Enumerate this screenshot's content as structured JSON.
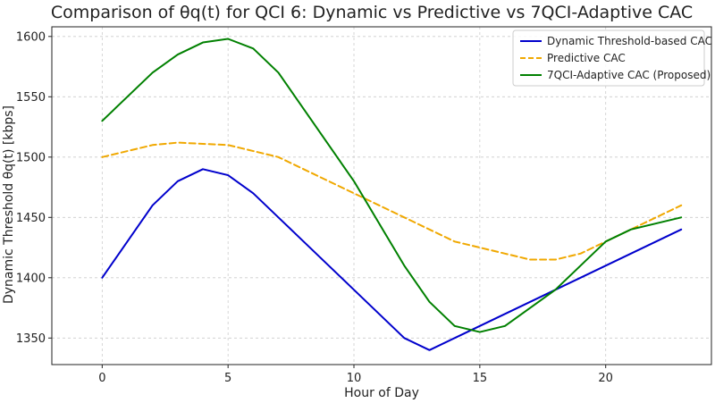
{
  "chart_data": {
    "type": "line",
    "title": "Comparison of θq(t) for QCI 6: Dynamic vs Predictive vs 7QCI-Adaptive CAC",
    "xlabel": "Hour of Day",
    "ylabel": "Dynamic Threshold θq(t) [kbps]",
    "xlim": [
      -2,
      24.2
    ],
    "ylim": [
      1328,
      1608
    ],
    "xticks": [
      0,
      5,
      10,
      15,
      20
    ],
    "yticks": [
      1350,
      1400,
      1450,
      1500,
      1550,
      1600
    ],
    "grid": true,
    "legend_position": "top-right",
    "series": [
      {
        "name": "Dynamic Threshold-based CAC",
        "color": "#0000cc",
        "dash": "solid",
        "x": [
          0,
          2,
          3,
          4,
          5,
          6,
          7,
          8,
          9,
          10,
          11,
          12,
          13,
          14,
          15,
          16,
          17,
          18,
          19,
          20,
          21,
          22,
          23
        ],
        "y": [
          1400,
          1460,
          1480,
          1490,
          1485,
          1470,
          1450,
          1430,
          1410,
          1390,
          1370,
          1350,
          1340,
          1350,
          1360,
          1370,
          1380,
          1390,
          1400,
          1410,
          1420,
          1430,
          1440
        ]
      },
      {
        "name": "Predictive CAC",
        "color": "#f0a800",
        "dash": "dashed",
        "x": [
          0,
          2,
          3,
          4,
          5,
          6,
          7,
          8,
          9,
          10,
          11,
          12,
          13,
          14,
          15,
          16,
          17,
          18,
          19,
          20,
          21,
          22,
          23
        ],
        "y": [
          1500,
          1510,
          1512,
          1511,
          1510,
          1505,
          1500,
          1490,
          1480,
          1470,
          1460,
          1450,
          1440,
          1430,
          1425,
          1420,
          1415,
          1415,
          1420,
          1430,
          1440,
          1450,
          1460
        ]
      },
      {
        "name": "7QCI-Adaptive CAC (Proposed)",
        "color": "#008000",
        "dash": "solid",
        "x": [
          0,
          2,
          3,
          4,
          5,
          6,
          7,
          8,
          9,
          10,
          11,
          12,
          13,
          14,
          15,
          16,
          17,
          18,
          19,
          20,
          21,
          22,
          23
        ],
        "y": [
          1530,
          1570,
          1585,
          1595,
          1598,
          1590,
          1570,
          1540,
          1510,
          1480,
          1445,
          1410,
          1380,
          1360,
          1355,
          1360,
          1375,
          1390,
          1410,
          1430,
          1440,
          1445,
          1450
        ]
      }
    ]
  }
}
